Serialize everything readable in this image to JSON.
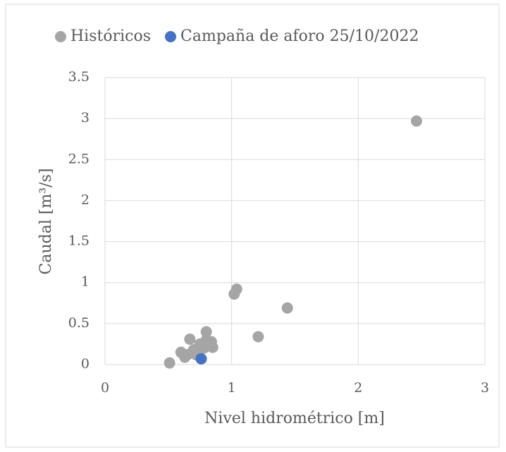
{
  "chart_data": {
    "type": "scatter",
    "xlabel": "Nivel hidrométrico [m]",
    "ylabel": "Caudal [m³/s]",
    "xlim": [
      0,
      3
    ],
    "xticks": [
      0,
      1,
      2,
      3
    ],
    "ylim": [
      0,
      3.5
    ],
    "yticks": [
      0,
      0.5,
      1,
      1.5,
      2,
      2.5,
      3,
      3.5
    ],
    "grid": true,
    "legend": "top",
    "series": [
      {
        "name": "Históricos",
        "color": "#a5a5a5",
        "x": [
          2.46,
          1.04,
          1.02,
          1.44,
          1.21,
          0.51,
          0.8,
          0.67,
          0.6,
          0.63,
          0.85,
          0.84,
          0.75,
          0.7,
          0.65,
          0.72,
          0.78,
          0.8
        ],
        "values": [
          2.97,
          0.92,
          0.86,
          0.69,
          0.34,
          0.02,
          0.4,
          0.31,
          0.15,
          0.09,
          0.21,
          0.28,
          0.25,
          0.18,
          0.12,
          0.12,
          0.2,
          0.3
        ]
      },
      {
        "name": "Campaña de aforo 25/10/2022",
        "color": "#4472c4",
        "x": [
          0.76
        ],
        "values": [
          0.07
        ]
      }
    ]
  }
}
